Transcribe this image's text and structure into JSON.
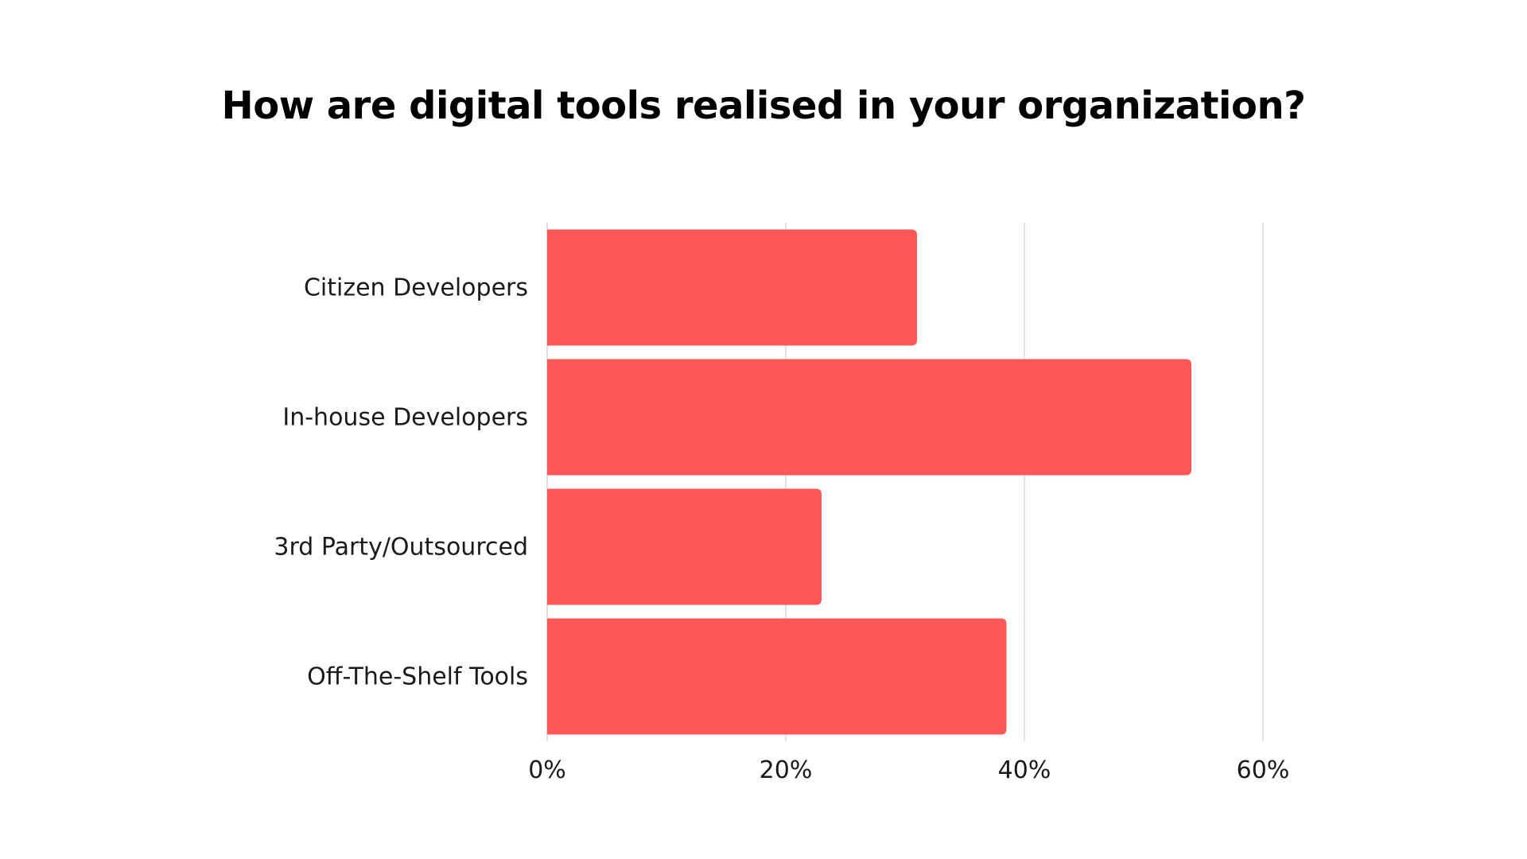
{
  "chart_data": {
    "type": "bar",
    "orientation": "horizontal",
    "title": "How are digital tools realised in your organization?",
    "categories": [
      "Citizen Developers",
      "In-house Developers",
      "3rd Party/Outsourced",
      "Off-The-Shelf Tools"
    ],
    "values": [
      31,
      54,
      23,
      38.5
    ],
    "value_unit": "%",
    "xlim": [
      0,
      60
    ],
    "xticks": [
      "0%",
      "20%",
      "40%",
      "60%"
    ],
    "xtick_values": [
      0,
      20,
      40,
      60
    ],
    "grid": "vertical",
    "bar_color": "#ff5757",
    "grid_color": "#d9d9d9"
  }
}
